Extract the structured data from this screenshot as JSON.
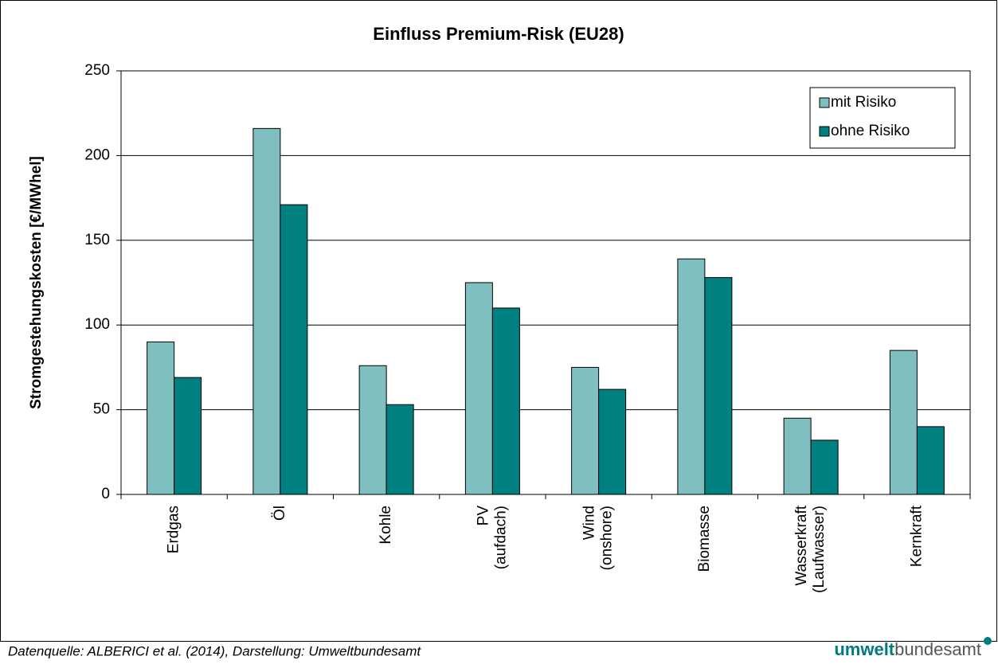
{
  "chart_data": {
    "type": "bar",
    "title": "Einfluss Premium-Risk (EU28)",
    "y_label": "Stromgestehungskosten [€/MWhel]",
    "categories": [
      "Erdgas",
      "Öl",
      "Kohle",
      "PV\n(aufdach)",
      "Wind\n(onshore)",
      "Biomasse",
      "Wasserkraft\n(Laufwasser)",
      "Kernkraft"
    ],
    "series": [
      {
        "name": "mit Risiko",
        "color": "#80bfbf",
        "values": [
          90,
          216,
          76,
          125,
          75,
          139,
          45,
          85
        ]
      },
      {
        "name": "ohne Risiko",
        "color": "#008080",
        "values": [
          69,
          171,
          53,
          110,
          62,
          128,
          32,
          40
        ]
      }
    ],
    "ylim": [
      0,
      250
    ],
    "yticks": [
      0,
      50,
      100,
      150,
      200,
      250
    ],
    "grid": true,
    "legend": "top-right",
    "source": "Datenquelle: ALBERICI et al. (2014), Darstellung: Umweltbundesamt",
    "logo_bold": "umwelt",
    "logo_rest": "bundesamt"
  }
}
